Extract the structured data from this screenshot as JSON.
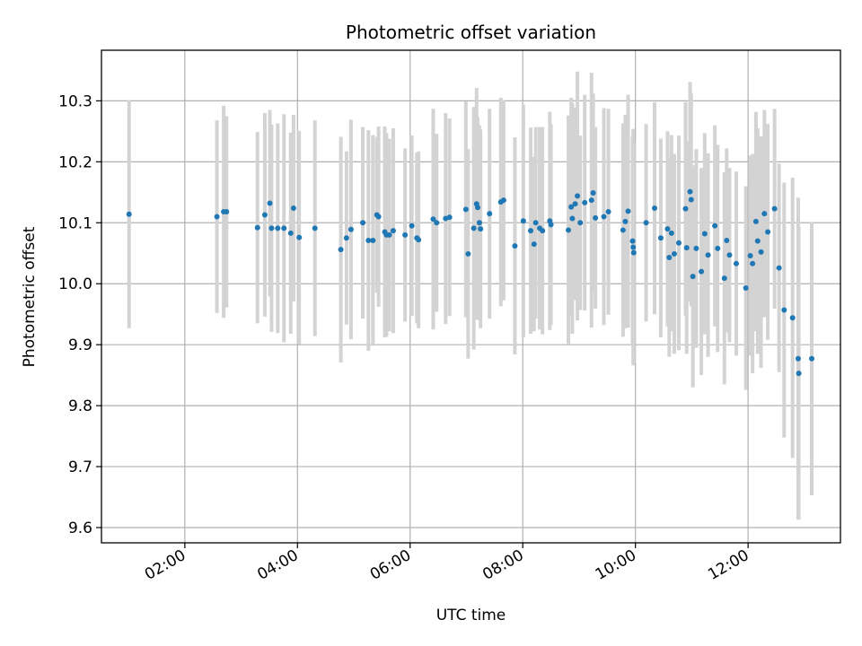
{
  "chart_data": {
    "type": "scatter",
    "title": "Photometric offset variation",
    "xlabel": "UTC time",
    "ylabel": "Photometric offset",
    "x_unit": "UTC hours",
    "xlim": [
      0.52,
      13.64
    ],
    "ylim": [
      9.575,
      10.383
    ],
    "x_ticks": [
      {
        "value": 2,
        "label": "02:00"
      },
      {
        "value": 4,
        "label": "04:00"
      },
      {
        "value": 6,
        "label": "06:00"
      },
      {
        "value": 8,
        "label": "08:00"
      },
      {
        "value": 10,
        "label": "10:00"
      },
      {
        "value": 12,
        "label": "12:00"
      }
    ],
    "y_ticks": [
      {
        "value": 9.6,
        "label": "9.6"
      },
      {
        "value": 9.7,
        "label": "9.7"
      },
      {
        "value": 9.8,
        "label": "9.8"
      },
      {
        "value": 9.9,
        "label": "9.9"
      },
      {
        "value": 10.0,
        "label": "10.0"
      },
      {
        "value": 10.1,
        "label": "10.1"
      },
      {
        "value": 10.2,
        "label": "10.2"
      },
      {
        "value": 10.3,
        "label": "10.3"
      }
    ],
    "grid": true,
    "colors": {
      "marker": "#1f77b4",
      "errorbar": "#d3d3d3",
      "grid": "#b0b0b0"
    },
    "points": [
      [
        1.01,
        10.114,
        0.187
      ],
      [
        2.57,
        10.11,
        0.158
      ],
      [
        2.69,
        10.118,
        0.174
      ],
      [
        2.74,
        10.118,
        0.157
      ],
      [
        3.29,
        10.092,
        0.157
      ],
      [
        3.42,
        10.113,
        0.167
      ],
      [
        3.51,
        10.132,
        0.153
      ],
      [
        3.54,
        10.091,
        0.17
      ],
      [
        3.65,
        10.091,
        0.172
      ],
      [
        3.76,
        10.091,
        0.187
      ],
      [
        3.88,
        10.083,
        0.165
      ],
      [
        3.93,
        10.124,
        0.153
      ],
      [
        4.03,
        10.076,
        0.175
      ],
      [
        4.31,
        10.091,
        0.177
      ],
      [
        4.77,
        10.056,
        0.185
      ],
      [
        4.87,
        10.075,
        0.142
      ],
      [
        4.95,
        10.089,
        0.18
      ],
      [
        5.16,
        10.1,
        0.157
      ],
      [
        5.26,
        10.071,
        0.181
      ],
      [
        5.34,
        10.071,
        0.173
      ],
      [
        5.41,
        10.113,
        0.128
      ],
      [
        5.44,
        10.11,
        0.148
      ],
      [
        5.55,
        10.085,
        0.173
      ],
      [
        5.58,
        10.08,
        0.167
      ],
      [
        5.63,
        10.08,
        0.158
      ],
      [
        5.7,
        10.087,
        0.168
      ],
      [
        5.91,
        10.08,
        0.142
      ],
      [
        6.03,
        10.095,
        0.148
      ],
      [
        6.12,
        10.075,
        0.14
      ],
      [
        6.15,
        10.072,
        0.145
      ],
      [
        6.41,
        10.106,
        0.181
      ],
      [
        6.47,
        10.1,
        0.146
      ],
      [
        6.63,
        10.107,
        0.173
      ],
      [
        6.7,
        10.109,
        0.162
      ],
      [
        6.99,
        10.122,
        0.177
      ],
      [
        7.03,
        10.049,
        0.172
      ],
      [
        7.13,
        10.091,
        0.199
      ],
      [
        7.18,
        10.131,
        0.19
      ],
      [
        7.2,
        10.125,
        0.148
      ],
      [
        7.23,
        10.1,
        0.16
      ],
      [
        7.25,
        10.09,
        0.163
      ],
      [
        7.41,
        10.115,
        0.172
      ],
      [
        7.61,
        10.134,
        0.171
      ],
      [
        7.66,
        10.137,
        0.164
      ],
      [
        7.86,
        10.062,
        0.178
      ],
      [
        8.01,
        10.103,
        0.191
      ],
      [
        8.14,
        10.087,
        0.169
      ],
      [
        8.2,
        10.065,
        0.143
      ],
      [
        8.23,
        10.1,
        0.157
      ],
      [
        8.3,
        10.091,
        0.166
      ],
      [
        8.35,
        10.087,
        0.17
      ],
      [
        8.48,
        10.103,
        0.179
      ],
      [
        8.5,
        10.097,
        0.165
      ],
      [
        8.81,
        10.088,
        0.188
      ],
      [
        8.86,
        10.126,
        0.179
      ],
      [
        8.88,
        10.107,
        0.189
      ],
      [
        8.93,
        10.131,
        0.158
      ],
      [
        8.97,
        10.144,
        0.204
      ],
      [
        9.02,
        10.1,
        0.143
      ],
      [
        9.1,
        10.133,
        0.177
      ],
      [
        9.22,
        10.137,
        0.209
      ],
      [
        9.25,
        10.149,
        0.163
      ],
      [
        9.29,
        10.108,
        0.149
      ],
      [
        9.44,
        10.11,
        0.178
      ],
      [
        9.52,
        10.118,
        0.169
      ],
      [
        9.78,
        10.088,
        0.175
      ],
      [
        9.82,
        10.102,
        0.175
      ],
      [
        9.87,
        10.119,
        0.191
      ],
      [
        9.95,
        10.07,
        0.172
      ],
      [
        9.96,
        10.06,
        0.194
      ],
      [
        9.97,
        10.051,
        0.181
      ],
      [
        10.19,
        10.1,
        0.162
      ],
      [
        10.34,
        10.124,
        0.174
      ],
      [
        10.45,
        10.075,
        0.163
      ],
      [
        10.57,
        10.09,
        0.16
      ],
      [
        10.6,
        10.043,
        0.163
      ],
      [
        10.64,
        10.083,
        0.161
      ],
      [
        10.69,
        10.049,
        0.164
      ],
      [
        10.77,
        10.067,
        0.176
      ],
      [
        10.89,
        10.123,
        0.175
      ],
      [
        10.91,
        10.059,
        0.174
      ],
      [
        10.97,
        10.151,
        0.18
      ],
      [
        10.99,
        10.138,
        0.175
      ],
      [
        11.02,
        10.012,
        0.182
      ],
      [
        11.08,
        10.058,
        0.163
      ],
      [
        11.17,
        10.02,
        0.17
      ],
      [
        11.23,
        10.082,
        0.165
      ],
      [
        11.29,
        10.047,
        0.167
      ],
      [
        11.41,
        10.095,
        0.165
      ],
      [
        11.46,
        10.058,
        0.17
      ],
      [
        11.58,
        10.009,
        0.174
      ],
      [
        11.62,
        10.071,
        0.151
      ],
      [
        11.67,
        10.047,
        0.143
      ],
      [
        11.79,
        10.033,
        0.151
      ],
      [
        11.96,
        9.993,
        0.167
      ],
      [
        12.04,
        10.046,
        0.164
      ],
      [
        12.08,
        10.033,
        0.18
      ],
      [
        12.14,
        10.102,
        0.18
      ],
      [
        12.17,
        10.07,
        0.185
      ],
      [
        12.23,
        10.052,
        0.19
      ],
      [
        12.29,
        10.115,
        0.17
      ],
      [
        12.35,
        10.085,
        0.177
      ],
      [
        12.47,
        10.123,
        0.164
      ],
      [
        12.55,
        10.026,
        0.171
      ],
      [
        12.64,
        9.957,
        0.209
      ],
      [
        12.79,
        9.944,
        0.23
      ],
      [
        12.89,
        9.877,
        0.264
      ],
      [
        12.9,
        9.853,
        0.24
      ],
      [
        13.13,
        9.877,
        0.224
      ]
    ]
  }
}
